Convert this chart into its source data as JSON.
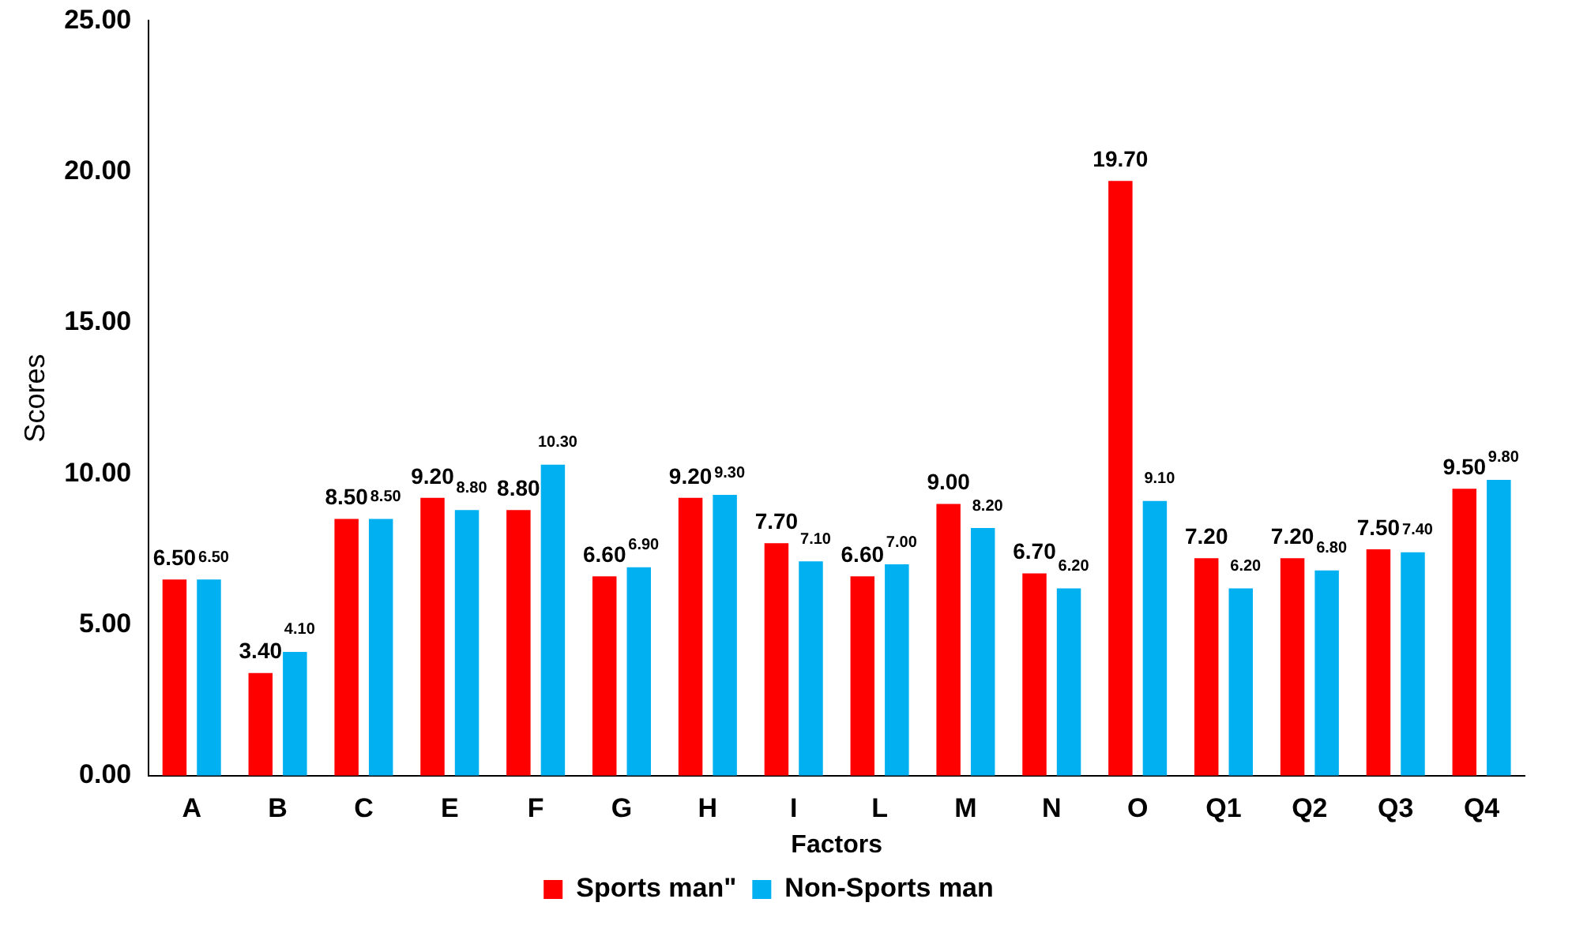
{
  "chart_data": {
    "type": "bar",
    "xlabel": "Factors",
    "ylabel": "Scores",
    "categories": [
      "A",
      "B",
      "C",
      "E",
      "F",
      "G",
      "H",
      "I",
      "L",
      "M",
      "N",
      "O",
      "Q1",
      "Q2",
      "Q3",
      "Q4"
    ],
    "series": [
      {
        "name": "Sports man\"",
        "color": "#ff0000",
        "values": [
          6.5,
          3.4,
          8.5,
          9.2,
          8.8,
          6.6,
          9.2,
          7.7,
          6.6,
          9.0,
          6.7,
          19.7,
          7.2,
          7.2,
          7.5,
          9.5
        ],
        "value_labels": [
          "6.50",
          "3.40",
          "8.50",
          "9.20",
          "8.80",
          "6.60",
          "9.20",
          "7.70",
          "6.60",
          "9.00",
          "6.70",
          "19.70",
          "7.20",
          "7.20",
          "7.50",
          "9.50"
        ]
      },
      {
        "name": "Non-Sports man",
        "color": "#00b0f0",
        "values": [
          6.5,
          4.1,
          8.5,
          8.8,
          10.3,
          6.9,
          9.3,
          7.1,
          7.0,
          8.2,
          6.2,
          9.1,
          6.2,
          6.8,
          7.4,
          9.8
        ],
        "value_labels": [
          "6.50",
          "4.10",
          "8.50",
          "8.80",
          "10.30",
          "6.90",
          "9.30",
          "7.10",
          "7.00",
          "8.20",
          "6.20",
          "9.10",
          "6.20",
          "6.80",
          "7.40",
          "9.80"
        ]
      }
    ],
    "ylim": [
      0,
      25
    ],
    "yticks": [
      {
        "value": 0,
        "label": "0.00"
      },
      {
        "value": 5,
        "label": "5.00"
      },
      {
        "value": 10,
        "label": "10.00"
      },
      {
        "value": 15,
        "label": "15.00"
      },
      {
        "value": 20,
        "label": "20.00"
      },
      {
        "value": 25,
        "label": "25.00"
      }
    ],
    "grid": false,
    "legend": "bottom"
  }
}
